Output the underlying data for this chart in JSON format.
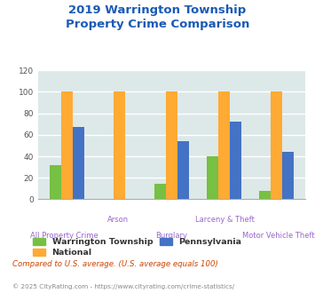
{
  "title": "2019 Warrington Township\nProperty Crime Comparison",
  "categories": [
    "All Property Crime",
    "Arson",
    "Burglary",
    "Larceny & Theft",
    "Motor Vehicle Theft"
  ],
  "series": {
    "Warrington Township": [
      32,
      0,
      14,
      40,
      8
    ],
    "National": [
      100,
      100,
      100,
      100,
      100
    ],
    "Pennsylvania": [
      67,
      0,
      54,
      72,
      44
    ]
  },
  "colors": {
    "Warrington Township": "#76c043",
    "National": "#ffaa33",
    "Pennsylvania": "#4472c4"
  },
  "ylim": [
    0,
    120
  ],
  "yticks": [
    0,
    20,
    40,
    60,
    80,
    100,
    120
  ],
  "bar_width": 0.22,
  "title_color": "#1a5ab5",
  "title_fontsize": 9.5,
  "xlabel_color": "#9966cc",
  "axis_bg_color": "#dde8e8",
  "grid_color": "#ffffff",
  "footnote1": "Compared to U.S. average. (U.S. average equals 100)",
  "footnote2": "© 2025 CityRating.com - https://www.cityrating.com/crime-statistics/",
  "footnote1_color": "#cc4400",
  "footnote2_color": "#888888"
}
